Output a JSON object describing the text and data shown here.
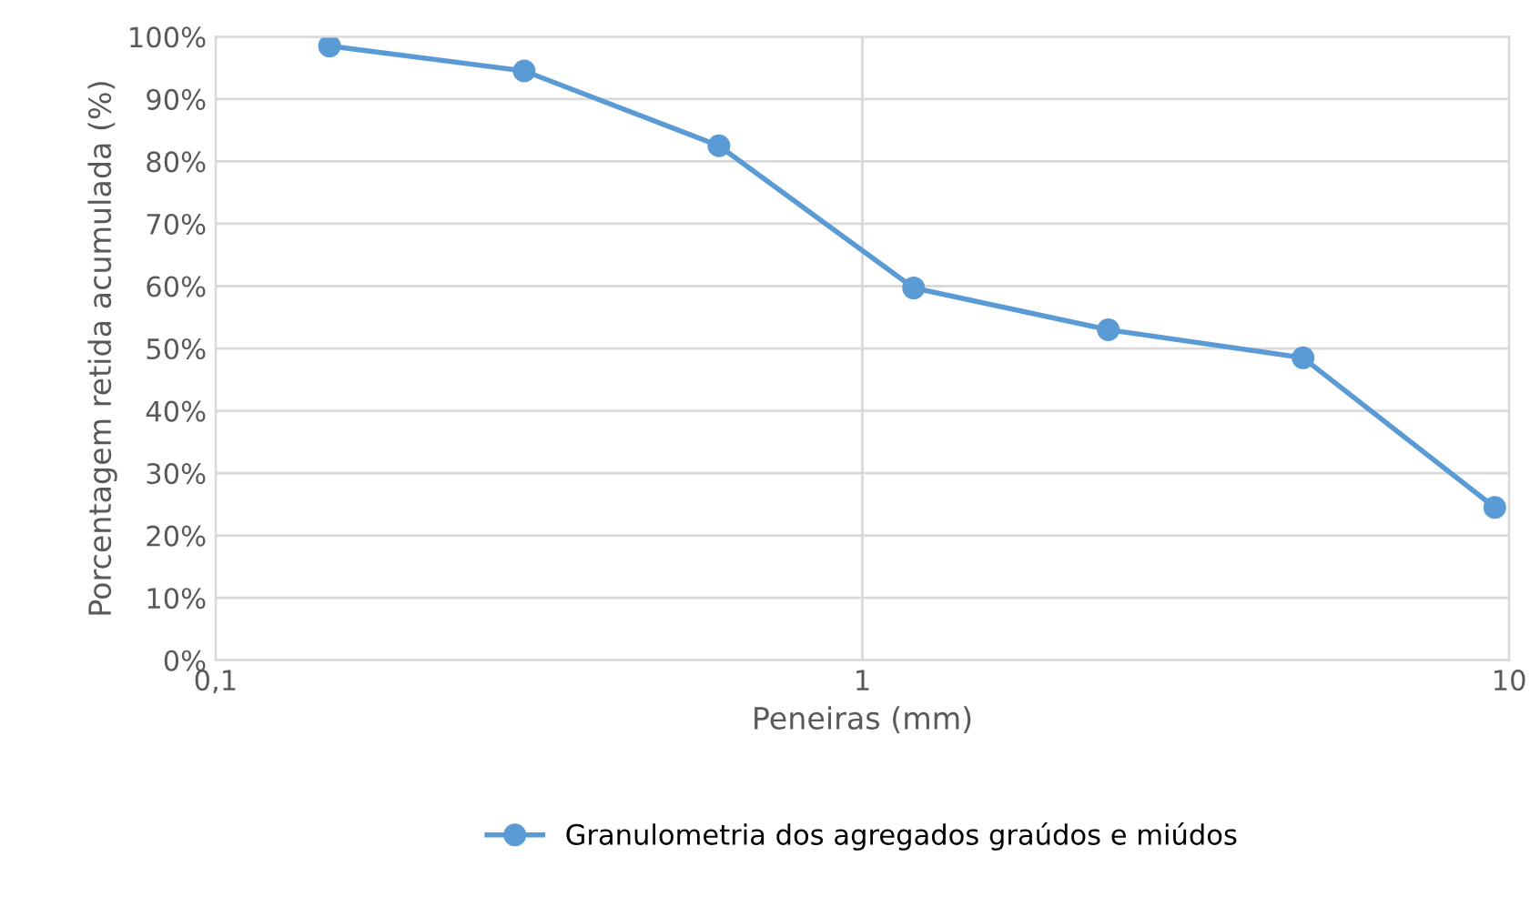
{
  "chart_data": {
    "type": "line",
    "xlabel": "Peneiras (mm)",
    "ylabel": "Porcentagem retida acumulada (%)",
    "x": [
      0.15,
      0.3,
      0.6,
      1.2,
      2.4,
      4.8,
      9.5
    ],
    "series": [
      {
        "name": "Granulometria dos agregados graúdos e miúdos",
        "color": "#5b9bd5",
        "values": [
          98.5,
          94.5,
          82.5,
          59.7,
          53,
          48.5,
          24.5
        ]
      }
    ],
    "log": "x",
    "xlim": [
      0.1,
      10
    ],
    "xticks": [
      {
        "value": 0.1,
        "label": "0,1"
      },
      1,
      10
    ],
    "ylim": [
      0,
      100
    ],
    "yticks": [
      {
        "value": 0,
        "label": "0%"
      },
      {
        "value": 10,
        "label": "10%"
      },
      {
        "value": 20,
        "label": "20%"
      },
      {
        "value": 30,
        "label": "30%"
      },
      {
        "value": 40,
        "label": "40%"
      },
      {
        "value": 50,
        "label": "50%"
      },
      {
        "value": 60,
        "label": "60%"
      },
      {
        "value": 70,
        "label": "70%"
      },
      {
        "value": 80,
        "label": "80%"
      },
      {
        "value": 90,
        "label": "90%"
      },
      {
        "value": 100,
        "label": "100%"
      }
    ],
    "grid": true,
    "legend": "bottom",
    "marker": "circle",
    "line_style": "solid"
  }
}
